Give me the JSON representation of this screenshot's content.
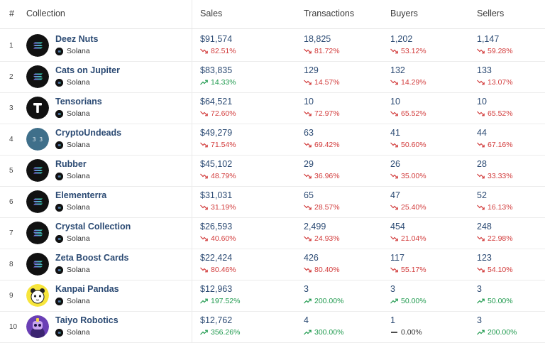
{
  "header": {
    "rank": "#",
    "collection": "Collection",
    "sales": "Sales",
    "transactions": "Transactions",
    "buyers": "Buyers",
    "sellers": "Sellers"
  },
  "colors": {
    "link": "#2b4a73",
    "down": "#d23b3b",
    "up": "#1f9a4e"
  },
  "rows": [
    {
      "rank": "1",
      "name": "Deez Nuts",
      "chain": "Solana",
      "avatar": "solana-logo-icon",
      "sales": "$91,574",
      "sales_chg": "82.51%",
      "sales_dir": "down",
      "tx": "18,825",
      "tx_chg": "81.72%",
      "tx_dir": "down",
      "buyers": "1,202",
      "buyers_chg": "53.12%",
      "buyers_dir": "down",
      "sellers": "1,147",
      "sellers_chg": "59.28%",
      "sellers_dir": "down"
    },
    {
      "rank": "2",
      "name": "Cats on Jupiter",
      "chain": "Solana",
      "avatar": "solana-logo-icon",
      "sales": "$83,835",
      "sales_chg": "14.33%",
      "sales_dir": "up",
      "tx": "129",
      "tx_chg": "14.57%",
      "tx_dir": "down",
      "buyers": "132",
      "buyers_chg": "14.29%",
      "buyers_dir": "down",
      "sellers": "133",
      "sellers_chg": "13.07%",
      "sellers_dir": "down"
    },
    {
      "rank": "3",
      "name": "Tensorians",
      "chain": "Solana",
      "avatar": "t-logo-icon",
      "avatar_letter": "T",
      "sales": "$64,521",
      "sales_chg": "72.60%",
      "sales_dir": "down",
      "tx": "10",
      "tx_chg": "72.97%",
      "tx_dir": "down",
      "buyers": "10",
      "buyers_chg": "65.52%",
      "buyers_dir": "down",
      "sellers": "10",
      "sellers_chg": "65.52%",
      "sellers_dir": "down"
    },
    {
      "rank": "4",
      "name": "CryptoUndeads",
      "chain": "Solana",
      "avatar": "undead-face-icon",
      "sales": "$49,279",
      "sales_chg": "71.54%",
      "sales_dir": "down",
      "tx": "63",
      "tx_chg": "69.42%",
      "tx_dir": "down",
      "buyers": "41",
      "buyers_chg": "50.60%",
      "buyers_dir": "down",
      "sellers": "44",
      "sellers_chg": "67.16%",
      "sellers_dir": "down"
    },
    {
      "rank": "5",
      "name": "Rubber",
      "chain": "Solana",
      "avatar": "solana-logo-icon",
      "sales": "$45,102",
      "sales_chg": "48.79%",
      "sales_dir": "down",
      "tx": "29",
      "tx_chg": "36.96%",
      "tx_dir": "down",
      "buyers": "26",
      "buyers_chg": "35.00%",
      "buyers_dir": "down",
      "sellers": "28",
      "sellers_chg": "33.33%",
      "sellers_dir": "down"
    },
    {
      "rank": "6",
      "name": "Elementerra",
      "chain": "Solana",
      "avatar": "solana-logo-icon",
      "sales": "$31,031",
      "sales_chg": "31.19%",
      "sales_dir": "down",
      "tx": "65",
      "tx_chg": "28.57%",
      "tx_dir": "down",
      "buyers": "47",
      "buyers_chg": "25.40%",
      "buyers_dir": "down",
      "sellers": "52",
      "sellers_chg": "16.13%",
      "sellers_dir": "down"
    },
    {
      "rank": "7",
      "name": "Crystal Collection",
      "chain": "Solana",
      "avatar": "solana-logo-icon",
      "sales": "$26,593",
      "sales_chg": "40.60%",
      "sales_dir": "down",
      "tx": "2,499",
      "tx_chg": "24.93%",
      "tx_dir": "down",
      "buyers": "454",
      "buyers_chg": "21.04%",
      "buyers_dir": "down",
      "sellers": "248",
      "sellers_chg": "22.98%",
      "sellers_dir": "down"
    },
    {
      "rank": "8",
      "name": "Zeta Boost Cards",
      "chain": "Solana",
      "avatar": "solana-logo-icon",
      "sales": "$22,424",
      "sales_chg": "80.46%",
      "sales_dir": "down",
      "tx": "426",
      "tx_chg": "80.40%",
      "tx_dir": "down",
      "buyers": "117",
      "buyers_chg": "55.17%",
      "buyers_dir": "down",
      "sellers": "123",
      "sellers_chg": "54.10%",
      "sellers_dir": "down"
    },
    {
      "rank": "9",
      "name": "Kanpai Pandas",
      "chain": "Solana",
      "avatar": "panda-icon",
      "sales": "$12,963",
      "sales_chg": "197.52%",
      "sales_dir": "up",
      "tx": "3",
      "tx_chg": "200.00%",
      "tx_dir": "up",
      "buyers": "3",
      "buyers_chg": "50.00%",
      "buyers_dir": "up",
      "sellers": "3",
      "sellers_chg": "50.00%",
      "sellers_dir": "up"
    },
    {
      "rank": "10",
      "name": "Taiyo Robotics",
      "chain": "Solana",
      "avatar": "robot-icon",
      "sales": "$12,762",
      "sales_chg": "356.26%",
      "sales_dir": "up",
      "tx": "4",
      "tx_chg": "300.00%",
      "tx_dir": "up",
      "buyers": "1",
      "buyers_chg": "0.00%",
      "buyers_dir": "flat",
      "sellers": "3",
      "sellers_chg": "200.00%",
      "sellers_dir": "up"
    }
  ]
}
